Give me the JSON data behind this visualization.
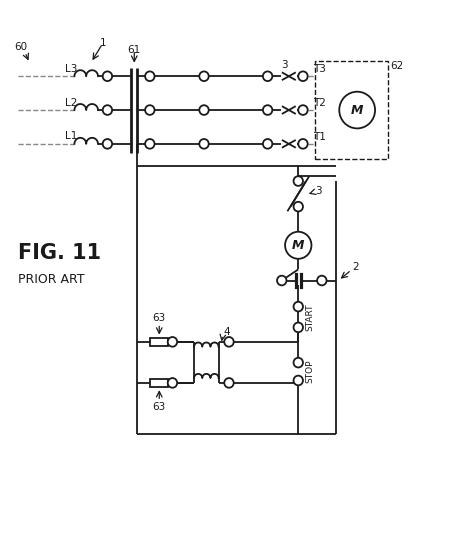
{
  "bg_color": "#ffffff",
  "line_color": "#1a1a1a",
  "fig_label": "FIG. 11",
  "fig_sublabel": "PRIOR ART",
  "font_size_fig": 15,
  "font_size_sub": 9,
  "font_size_label": 7.5,
  "xlim": [
    0,
    10
  ],
  "ylim": [
    0,
    11
  ],
  "figsize": [
    4.74,
    5.34
  ],
  "dpi": 100
}
